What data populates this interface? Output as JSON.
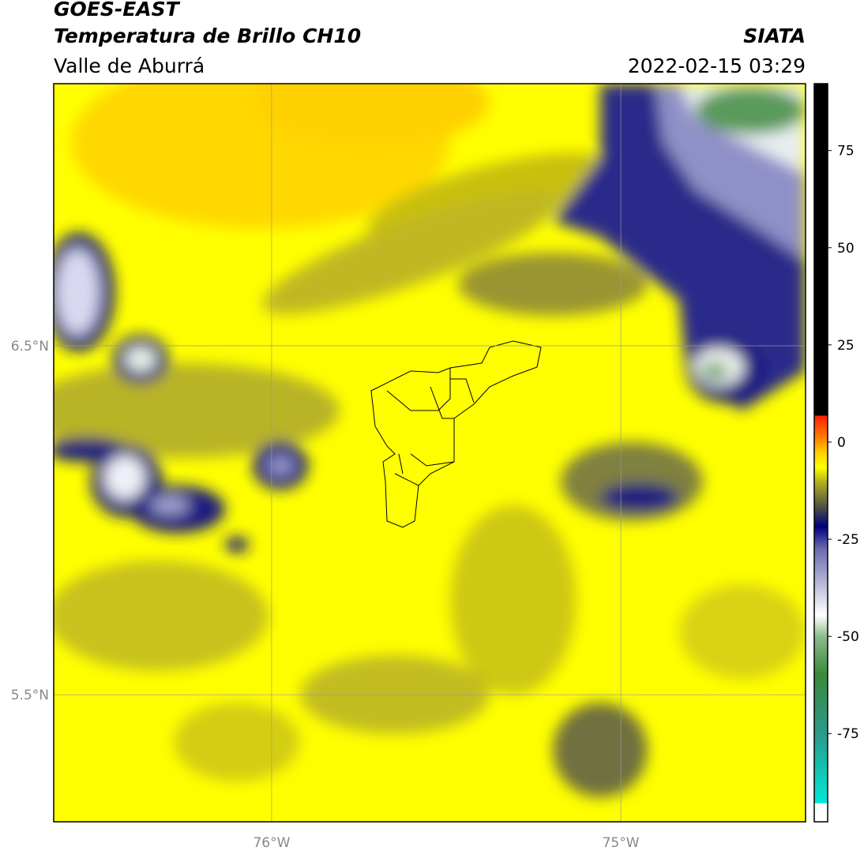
{
  "header": {
    "title": "GOES-EAST",
    "subtitle": "Temperatura de Brillo CH10",
    "region": "Valle de Aburrá",
    "source": "SIATA",
    "timestamp": "2022-02-15 03:29"
  },
  "map": {
    "xlim": [
      -76.624,
      -74.471
    ],
    "ylim": [
      5.136,
      7.251
    ],
    "xticks": [
      {
        "value": -76,
        "label": "76°W"
      },
      {
        "value": -75,
        "label": "75°W"
      }
    ],
    "yticks": [
      {
        "value": 6.5,
        "label": "6.5°N"
      },
      {
        "value": 5.5,
        "label": "5.5°N"
      }
    ],
    "grid": true
  },
  "colorbar": {
    "lim": [
      -97.7,
      92.2
    ],
    "ticks": [
      75,
      50,
      25,
      0,
      -25,
      -50,
      -75
    ]
  }
}
